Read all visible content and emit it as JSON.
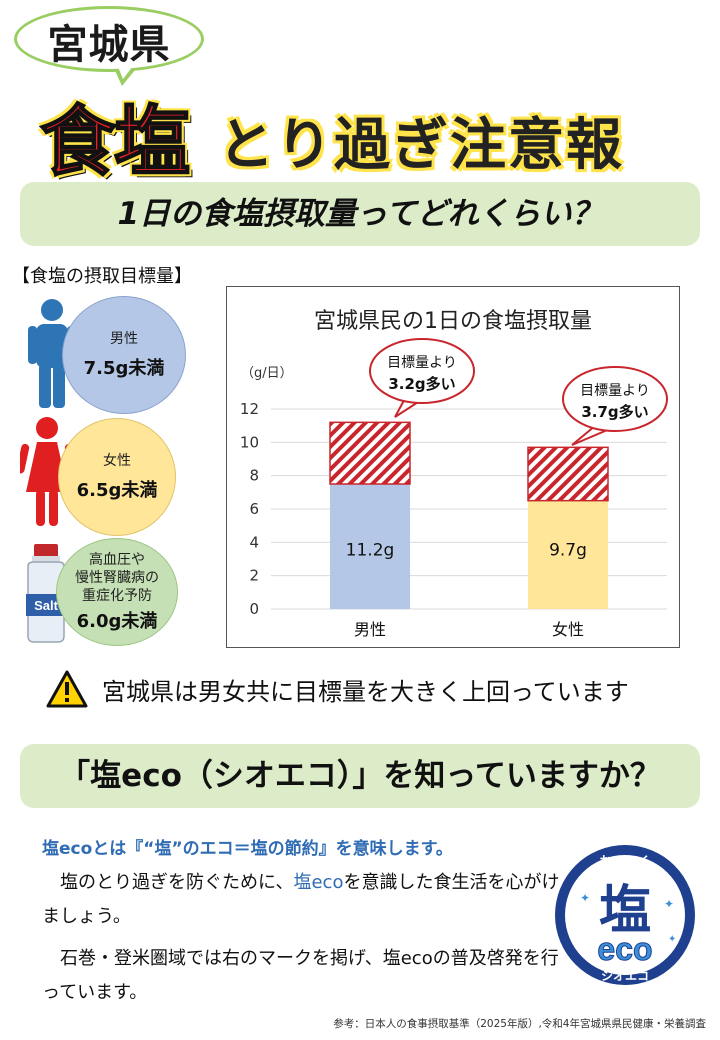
{
  "header": {
    "prefecture": "宮城県",
    "title_red": "食塩",
    "title_rest": "とり過ぎ注意報"
  },
  "section1": {
    "heading": "1日の食塩摂取量ってどれくらい？"
  },
  "targets": {
    "label": "【食塩の摂取目標量】",
    "items": [
      {
        "lines": [
          "男性"
        ],
        "value": "7.5g未満",
        "color": "#b4c7e7"
      },
      {
        "lines": [
          "女性"
        ],
        "value": "6.5g未満",
        "color": "#ffe699"
      },
      {
        "lines": [
          "高血圧や",
          "慢性腎臓病の",
          "重症化予防"
        ],
        "value": "6.0g未満",
        "color": "#c5e0b4"
      }
    ],
    "salt_label": "Salt"
  },
  "chart_data": {
    "type": "bar",
    "title": "宮城県民の1日の食塩摂取量",
    "ylabel": "（g/日）",
    "ylim": [
      0,
      12
    ],
    "yticks": [
      0,
      2,
      4,
      6,
      8,
      10,
      12
    ],
    "categories": [
      "男性",
      "女性"
    ],
    "values": [
      11.2,
      9.7
    ],
    "value_labels": [
      "11.2g",
      "9.7g"
    ],
    "targets": [
      7.5,
      6.5
    ],
    "excess": [
      3.7,
      3.2
    ],
    "bar_colors": [
      "#b4c7e7",
      "#ffe699"
    ],
    "excess_color": "#c8262c",
    "callouts": [
      {
        "line1": "目標量より",
        "line2": "3.2g多い"
      },
      {
        "line1": "目標量より",
        "line2": "3.7g多い"
      }
    ]
  },
  "warning": {
    "text": "宮城県は男女共に目標量を大きく上回っています"
  },
  "section2": {
    "heading": "「塩eco（シオエコ）」を知っていますか？"
  },
  "eco": {
    "lead": "塩ecoとは『“塩”のエコ＝塩の節約』を意味します。",
    "p1_a": "　塩のとり過ぎを防ぐために、",
    "p1_b": "塩eco",
    "p1_c": "を意識した食生活を心がけましょう。",
    "p2": "　石巻・登米圏域では右のマークを掲げ、塩ecoの普及啓発を行っています。"
  },
  "logo": {
    "top": "おいしく",
    "main": "塩",
    "eco": "eco",
    "bottom": "シオエコ"
  },
  "reference": "参考：日本人の食事摂取基準（2025年版）,令和4年宮城県県民健康・栄養調査"
}
